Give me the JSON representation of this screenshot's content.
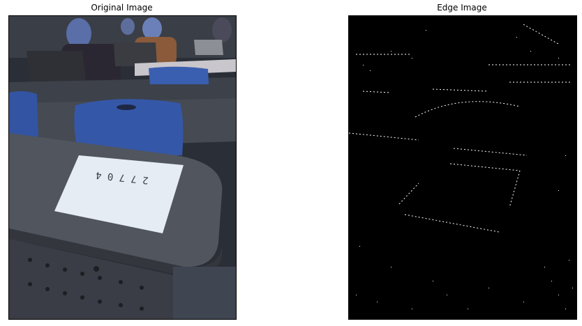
{
  "panels": {
    "left": {
      "title": "Original Image"
    },
    "right": {
      "title": "Edge Image"
    }
  },
  "paper": {
    "handwriting": "2 7 7 0 4"
  },
  "colors": {
    "background": "#ffffff",
    "desk": "#4a4f58",
    "chair": "#3556a6",
    "paper": "#e6ecf4",
    "edge_bg": "#000000",
    "edge_fg": "#ffffff"
  }
}
